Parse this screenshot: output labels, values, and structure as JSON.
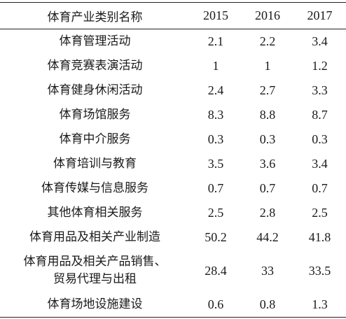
{
  "table": {
    "headers": [
      "体育产业类别名称",
      "2015",
      "2016",
      "2017"
    ],
    "rows": [
      {
        "name": "体育管理活动",
        "v2015": "2.1",
        "v2016": "2.2",
        "v2017": "3.4"
      },
      {
        "name": "体育竞赛表演活动",
        "v2015": "1",
        "v2016": "1",
        "v2017": "1.2"
      },
      {
        "name": "体育健身休闲活动",
        "v2015": "2.4",
        "v2016": "2.7",
        "v2017": "3.3"
      },
      {
        "name": "体育场馆服务",
        "v2015": "8.3",
        "v2016": "8.8",
        "v2017": "8.7"
      },
      {
        "name": "体育中介服务",
        "v2015": "0.3",
        "v2016": "0.3",
        "v2017": "0.3"
      },
      {
        "name": "体育培训与教育",
        "v2015": "3.5",
        "v2016": "3.6",
        "v2017": "3.4"
      },
      {
        "name": "体育传媒与信息服务",
        "v2015": "0.7",
        "v2016": "0.7",
        "v2017": "0.7"
      },
      {
        "name": "其他体育相关服务",
        "v2015": "2.5",
        "v2016": "2.8",
        "v2017": "2.5"
      },
      {
        "name": "体育用品及相关产业制造",
        "v2015": "50.2",
        "v2016": "44.2",
        "v2017": "41.8"
      },
      {
        "name_line1": "体育用品及相关产品销售、",
        "name_line2": "贸易代理与出租",
        "v2015": "28.4",
        "v2016": "33",
        "v2017": "33.5"
      },
      {
        "name": "体育场地设施建设",
        "v2015": "0.6",
        "v2016": "0.8",
        "v2017": "1.3"
      }
    ]
  }
}
